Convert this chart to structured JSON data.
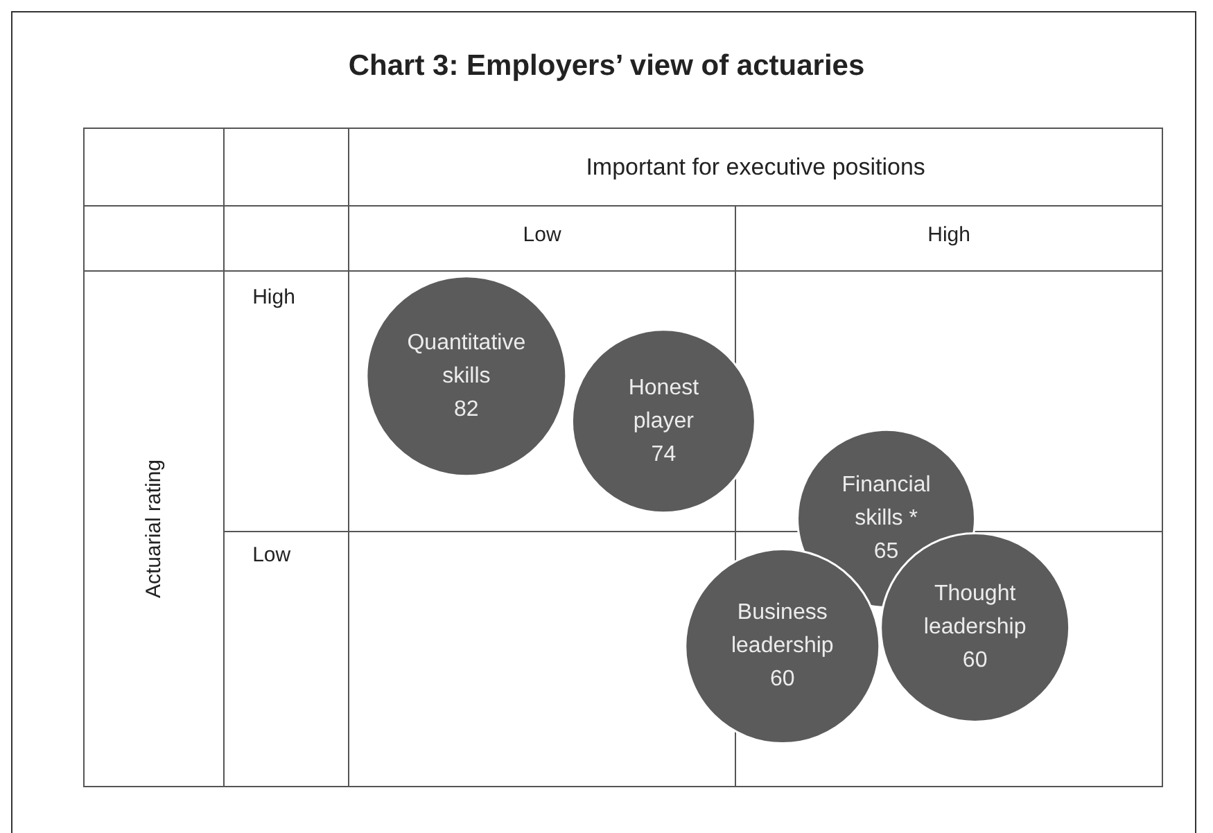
{
  "chart_data": {
    "type": "other",
    "title": "Chart 3: Employers’ view of actuaries",
    "xlabel": "Important for executive positions",
    "ylabel": "Actuarial rating",
    "categories": [
      "Quantitative skills",
      "Honest player",
      "Financial skills *",
      "Business leadership",
      "Thought leadership"
    ],
    "values": [
      82,
      74,
      65,
      60,
      60
    ],
    "color": "#5b5b5b",
    "data_labels": true,
    "annotations": [
      "Low",
      "High",
      "High",
      "Low"
    ]
  }
}
